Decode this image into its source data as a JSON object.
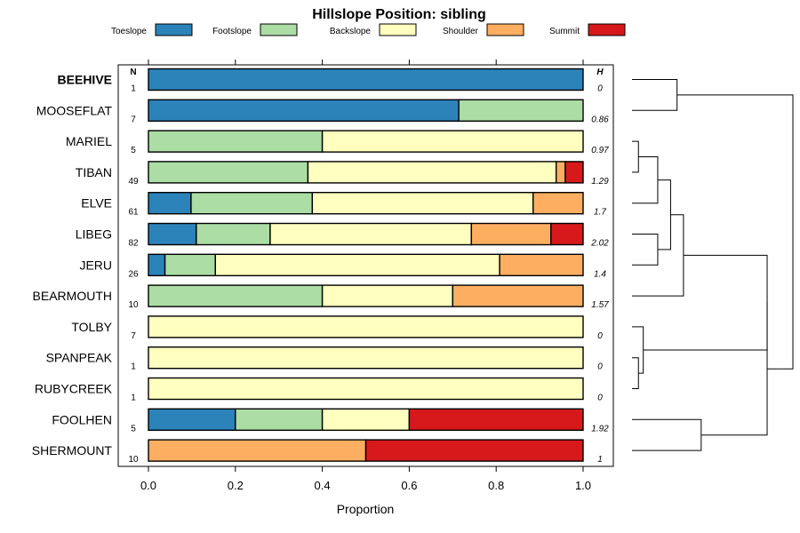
{
  "chart_data": {
    "type": "bar",
    "orientation": "horizontal",
    "stacked": true,
    "title": "Hillslope Position: sibling",
    "xlabel": "Proportion",
    "ylabel": "",
    "xlim": [
      0,
      1
    ],
    "xticks": [
      "0.0",
      "0.2",
      "0.4",
      "0.6",
      "0.8",
      "1.0"
    ],
    "xtick_values": [
      0,
      0.2,
      0.4,
      0.6,
      0.8,
      1.0
    ],
    "n_header": "N",
    "h_header": "H",
    "legend": [
      {
        "name": "Toeslope",
        "color": "#2b83ba"
      },
      {
        "name": "Footslope",
        "color": "#abdda4"
      },
      {
        "name": "Backslope",
        "color": "#ffffbf"
      },
      {
        "name": "Shoulder",
        "color": "#fdae61"
      },
      {
        "name": "Summit",
        "color": "#d7191c"
      }
    ],
    "categories": [
      "BEEHIVE",
      "MOOSEFLAT",
      "MARIEL",
      "TIBAN",
      "ELVE",
      "LIBEG",
      "JERU",
      "BEARMOUTH",
      "TOLBY",
      "SPANPEAK",
      "RUBYCREEK",
      "FOOLHEN",
      "SHERMOUNT"
    ],
    "highlighted": "BEEHIVE",
    "n": [
      "1",
      "7",
      "5",
      "49",
      "61",
      "82",
      "26",
      "10",
      "7",
      "1",
      "1",
      "5",
      "10"
    ],
    "h": [
      "0",
      "0.86",
      "0.97",
      "1.29",
      "1.7",
      "2.02",
      "1.4",
      "1.57",
      "0",
      "0",
      "0",
      "1.92",
      "1"
    ],
    "series": [
      {
        "name": "Toeslope",
        "values": [
          1.0,
          0.714,
          0,
          0,
          0.098,
          0.11,
          0.038,
          0,
          0,
          0,
          0,
          0.2,
          0
        ]
      },
      {
        "name": "Footslope",
        "values": [
          0,
          0.286,
          0.4,
          0.367,
          0.279,
          0.17,
          0.116,
          0.4,
          0,
          0,
          0,
          0.2,
          0
        ]
      },
      {
        "name": "Backslope",
        "values": [
          0,
          0,
          0.6,
          0.571,
          0.508,
          0.463,
          0.654,
          0.3,
          1.0,
          1.0,
          1.0,
          0.2,
          0
        ]
      },
      {
        "name": "Shoulder",
        "values": [
          0,
          0,
          0,
          0.021,
          0.115,
          0.183,
          0.192,
          0.3,
          0,
          0,
          0,
          0,
          0.5
        ]
      },
      {
        "name": "Summit",
        "values": [
          0,
          0,
          0,
          0.041,
          0,
          0.074,
          0,
          0,
          0,
          0,
          0,
          0.4,
          0.5
        ]
      }
    ],
    "dendrogram": {
      "description": "hierarchical clustering of rows (leaf order matches categories)",
      "merges": [
        {
          "left": "TIBAN",
          "right": "MARIEL",
          "height": 0.04
        },
        {
          "left": "ELVE",
          "right": "MARIEL+TIBAN",
          "height": 0.16
        },
        {
          "left": "LIBEG",
          "right": "JERU",
          "height": 0.16
        },
        {
          "left": "MARIEL+TIBAN+ELVE",
          "right": "LIBEG+JERU",
          "height": 0.28
        },
        {
          "left": "group",
          "right": "BEARMOUTH",
          "height": 0.37
        },
        {
          "left": "SPANPEAK",
          "right": "RUBYCREEK",
          "height": 0.04
        },
        {
          "left": "TOLBY",
          "right": "SPANPEAK+RUBYCREEK",
          "height": 0.07
        },
        {
          "left": "BEEHIVE",
          "right": "MOOSEFLAT",
          "height": 0.32
        },
        {
          "left": "FOOLHEN",
          "right": "SHERMOUNT",
          "height": 0.49
        },
        {
          "left": "main-group",
          "right": "TOLBY-group",
          "height": 0.68
        },
        {
          "left": "above",
          "right": "FOOLHEN+SHERMOUNT",
          "height": 0.95
        },
        {
          "left": "above",
          "right": "BEEHIVE+MOOSEFLAT",
          "height": 1.0
        }
      ]
    }
  }
}
